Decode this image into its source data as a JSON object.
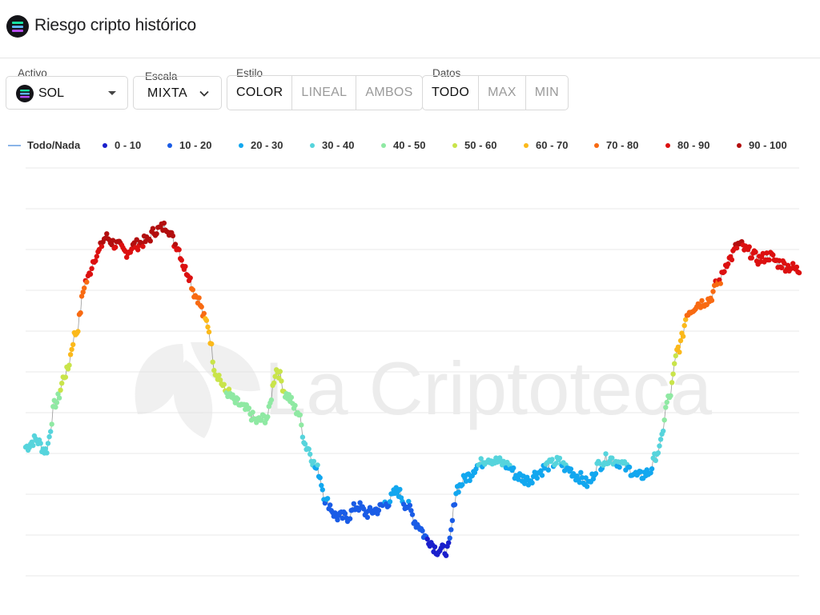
{
  "header": {
    "title": "Riesgo cripto histórico",
    "icon": "solana-logo-icon"
  },
  "controls": {
    "activo": {
      "label": "Activo",
      "value": "SOL",
      "icon": "solana-logo-icon"
    },
    "escala": {
      "label": "Escala",
      "value": "MIXTA"
    },
    "estilo": {
      "label": "Estilo",
      "options": [
        "COLOR",
        "LINEAL",
        "AMBOS"
      ],
      "selected": "COLOR"
    },
    "datos": {
      "label": "Datos",
      "options": [
        "TODO",
        "MAX",
        "MIN"
      ],
      "selected": "TODO"
    }
  },
  "watermark": {
    "text": "La Criptoteca"
  },
  "chart_data": {
    "type": "scatter",
    "title": "",
    "xlabel": "",
    "ylabel": "",
    "grid": true,
    "legend_position": "top",
    "line_series": {
      "name": "Todo/Nada",
      "color": "#8ab4e8"
    },
    "risk_bands": [
      {
        "name": "0 - 10",
        "color": "#1a1fcc"
      },
      {
        "name": "10 - 20",
        "color": "#1a5ce6"
      },
      {
        "name": "20 - 30",
        "color": "#12a7ef"
      },
      {
        "name": "30 - 40",
        "color": "#56d4dc"
      },
      {
        "name": "40 - 50",
        "color": "#8fe9a3"
      },
      {
        "name": "50 - 60",
        "color": "#c9e44a"
      },
      {
        "name": "60 - 70",
        "color": "#fbb91b"
      },
      {
        "name": "70 - 80",
        "color": "#f86a12"
      },
      {
        "name": "80 - 90",
        "color": "#dc1010"
      },
      {
        "name": "90 - 100",
        "color": "#b30e0e"
      }
    ],
    "points": [
      [
        0,
        0.35
      ],
      [
        0.5,
        0.37
      ],
      [
        1,
        0.34
      ],
      [
        1.5,
        0.47
      ],
      [
        2,
        0.55
      ],
      [
        2.5,
        0.66
      ],
      [
        3,
        0.8
      ],
      [
        3.5,
        0.87
      ],
      [
        4,
        0.92
      ],
      [
        4.5,
        0.9
      ],
      [
        5,
        0.88
      ],
      [
        5.5,
        0.9
      ],
      [
        6,
        0.91
      ],
      [
        6.5,
        0.94
      ],
      [
        7,
        0.95
      ],
      [
        7.5,
        0.9
      ],
      [
        8,
        0.83
      ],
      [
        8.5,
        0.76
      ],
      [
        9,
        0.69
      ],
      [
        9.5,
        0.55
      ],
      [
        10,
        0.5
      ],
      [
        10.5,
        0.47
      ],
      [
        11,
        0.45
      ],
      [
        11.5,
        0.42
      ],
      [
        12,
        0.43
      ],
      [
        12.5,
        0.56
      ],
      [
        13,
        0.49
      ],
      [
        13.5,
        0.45
      ],
      [
        14,
        0.35
      ],
      [
        14.5,
        0.29
      ],
      [
        15,
        0.2
      ],
      [
        15.5,
        0.16
      ],
      [
        16,
        0.16
      ],
      [
        16.5,
        0.19
      ],
      [
        17,
        0.17
      ],
      [
        17.5,
        0.18
      ],
      [
        18,
        0.2
      ],
      [
        18.5,
        0.23
      ],
      [
        19,
        0.19
      ],
      [
        19.5,
        0.14
      ],
      [
        20,
        0.1
      ],
      [
        20.5,
        0.07
      ],
      [
        21,
        0.07
      ],
      [
        21.5,
        0.24
      ],
      [
        22,
        0.27
      ],
      [
        22.5,
        0.3
      ],
      [
        23,
        0.32
      ],
      [
        23.5,
        0.31
      ],
      [
        24,
        0.3
      ],
      [
        24.5,
        0.27
      ],
      [
        25,
        0.26
      ],
      [
        25.5,
        0.28
      ],
      [
        26,
        0.3
      ],
      [
        26.5,
        0.31
      ],
      [
        27,
        0.29
      ],
      [
        27.5,
        0.27
      ],
      [
        28,
        0.25
      ],
      [
        28.5,
        0.3
      ],
      [
        29,
        0.32
      ],
      [
        29.5,
        0.31
      ],
      [
        30,
        0.29
      ],
      [
        30.5,
        0.27
      ],
      [
        31,
        0.28
      ],
      [
        31.5,
        0.34
      ],
      [
        32,
        0.48
      ],
      [
        32.5,
        0.62
      ],
      [
        33,
        0.72
      ],
      [
        33.5,
        0.74
      ],
      [
        34,
        0.75
      ],
      [
        34.5,
        0.8
      ],
      [
        35,
        0.86
      ],
      [
        35.5,
        0.9
      ],
      [
        36,
        0.88
      ],
      [
        36.5,
        0.86
      ],
      [
        37,
        0.87
      ],
      [
        37.5,
        0.85
      ],
      [
        38,
        0.84
      ],
      [
        38.5,
        0.83
      ]
    ]
  }
}
